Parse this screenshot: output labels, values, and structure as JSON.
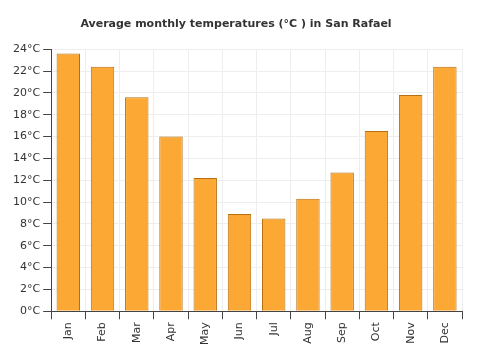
{
  "chart_data": {
    "type": "bar",
    "title": "Average monthly temperatures (°C ) in San Rafael",
    "categories": [
      "Jan",
      "Feb",
      "Mar",
      "Apr",
      "May",
      "Jun",
      "Jul",
      "Aug",
      "Sep",
      "Oct",
      "Nov",
      "Dec"
    ],
    "values": [
      23.6,
      22.4,
      19.6,
      16.0,
      12.2,
      8.9,
      8.5,
      10.3,
      12.7,
      16.5,
      19.8,
      22.4
    ],
    "color": "#fba834",
    "ylim": [
      0,
      24
    ],
    "yticks": [
      {
        "value": 0,
        "label": "0°C"
      },
      {
        "value": 2,
        "label": "2°C"
      },
      {
        "value": 4,
        "label": "4°C"
      },
      {
        "value": 6,
        "label": "6°C"
      },
      {
        "value": 8,
        "label": "8°C"
      },
      {
        "value": 10,
        "label": "10°C"
      },
      {
        "value": 12,
        "label": "12°C"
      },
      {
        "value": 14,
        "label": "14°C"
      },
      {
        "value": 16,
        "label": "16°C"
      },
      {
        "value": 18,
        "label": "18°C"
      },
      {
        "value": 20,
        "label": "20°C"
      },
      {
        "value": 22,
        "label": "22°C"
      },
      {
        "value": 24,
        "label": "24°C"
      }
    ],
    "grid": true
  }
}
